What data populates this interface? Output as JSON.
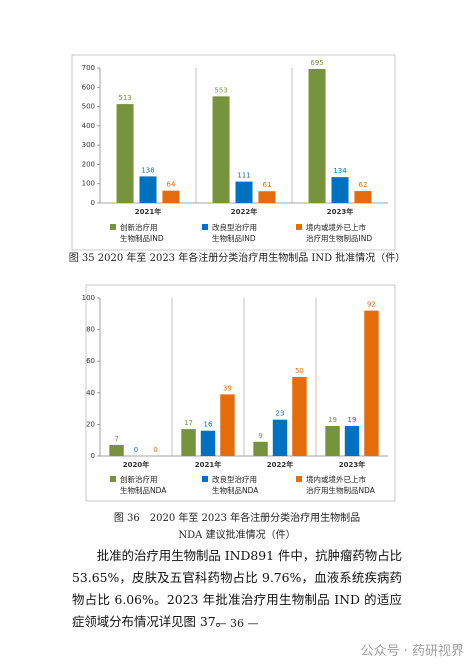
{
  "chart_data": [
    {
      "type": "bar",
      "categories": [
        "2021年",
        "2022年",
        "2023年"
      ],
      "series": [
        {
          "name": "创新治疗用\n生物制品IND",
          "color": "#77933c",
          "values": [
            513,
            553,
            695
          ]
        },
        {
          "name": "改良型治疗用\n生物制品IND",
          "color": "#0070c0",
          "values": [
            138,
            111,
            134
          ]
        },
        {
          "name": "境内或境外已上市\n治疗用生物制品IND",
          "color": "#e46c0a",
          "values": [
            64,
            61,
            62
          ]
        }
      ],
      "ylim": [
        0,
        700
      ],
      "yticks": [
        0,
        100,
        200,
        300,
        400,
        500,
        600,
        700
      ]
    },
    {
      "type": "bar",
      "categories": [
        "2020年",
        "2021年",
        "2022年",
        "2023年"
      ],
      "series": [
        {
          "name": "创新治疗用\n生物制品NDA",
          "color": "#77933c",
          "values": [
            7,
            17,
            9,
            19
          ]
        },
        {
          "name": "改良型治疗用\n生物制品NDA",
          "color": "#0070c0",
          "values": [
            0,
            16,
            23,
            19
          ]
        },
        {
          "name": "境内或境外已上市\n治疗用生物制品NDA",
          "color": "#e46c0a",
          "values": [
            0,
            39,
            50,
            92
          ]
        }
      ],
      "ylim": [
        0,
        100
      ],
      "yticks": [
        0,
        20,
        40,
        60,
        80,
        100
      ]
    }
  ],
  "captions": [
    "图 35 2020 年至 2023 年各注册分类治疗用生物制品 IND 批准情况（件）",
    "图 36　2020 年至 2023 年各注册分类治疗用生物制品\nNDA 建议批准情况（件）"
  ],
  "body_text": "批准的治疗用生物制品 IND891 件中，抗肿瘤药物占比 53.65%，皮肤及五官科药物占比 9.76%，血液系统疾病药物占比 6.06%。2023 年批准治疗用生物制品 IND 的适应症领域分布情况详见图 37。",
  "page_number": "— 36 —",
  "watermark": "公众号 · 药研视界"
}
